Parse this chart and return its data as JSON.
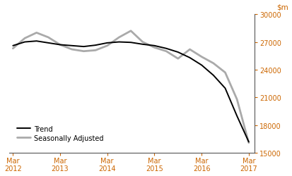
{
  "ylim": [
    15000,
    30000
  ],
  "yticks": [
    15000,
    18000,
    21000,
    24000,
    27000,
    30000
  ],
  "xlabel_dates": [
    "Mar\n2012",
    "Mar\n2013",
    "Mar\n2014",
    "Mar\n2015",
    "Mar\n2016",
    "Mar\n2017"
  ],
  "trend_color": "#000000",
  "sa_color": "#aaaaaa",
  "trend_linewidth": 1.4,
  "sa_linewidth": 2.0,
  "legend_labels": [
    "Trend",
    "Seasonally Adjusted"
  ],
  "background_color": "#ffffff",
  "tick_color": "#cc6600",
  "ylabel_color": "#cc6600",
  "trend_x": [
    0,
    1,
    2,
    3,
    4,
    5,
    6,
    7,
    8,
    9,
    10,
    11,
    12,
    13,
    14,
    15,
    16,
    17,
    18,
    19,
    20
  ],
  "trend_y": [
    26600,
    27000,
    27100,
    26900,
    26700,
    26600,
    26500,
    26650,
    26900,
    27000,
    26950,
    26750,
    26600,
    26300,
    25900,
    25300,
    24500,
    23400,
    22000,
    19000,
    16200
  ],
  "sa_x": [
    0,
    1,
    2,
    3,
    4,
    5,
    6,
    7,
    8,
    9,
    10,
    11,
    12,
    13,
    14,
    15,
    16,
    17,
    18,
    19,
    20
  ],
  "sa_y": [
    26300,
    27400,
    28000,
    27500,
    26700,
    26200,
    26000,
    26100,
    26600,
    27500,
    28200,
    27000,
    26400,
    26000,
    25200,
    26200,
    25400,
    24700,
    23700,
    20800,
    16100
  ]
}
